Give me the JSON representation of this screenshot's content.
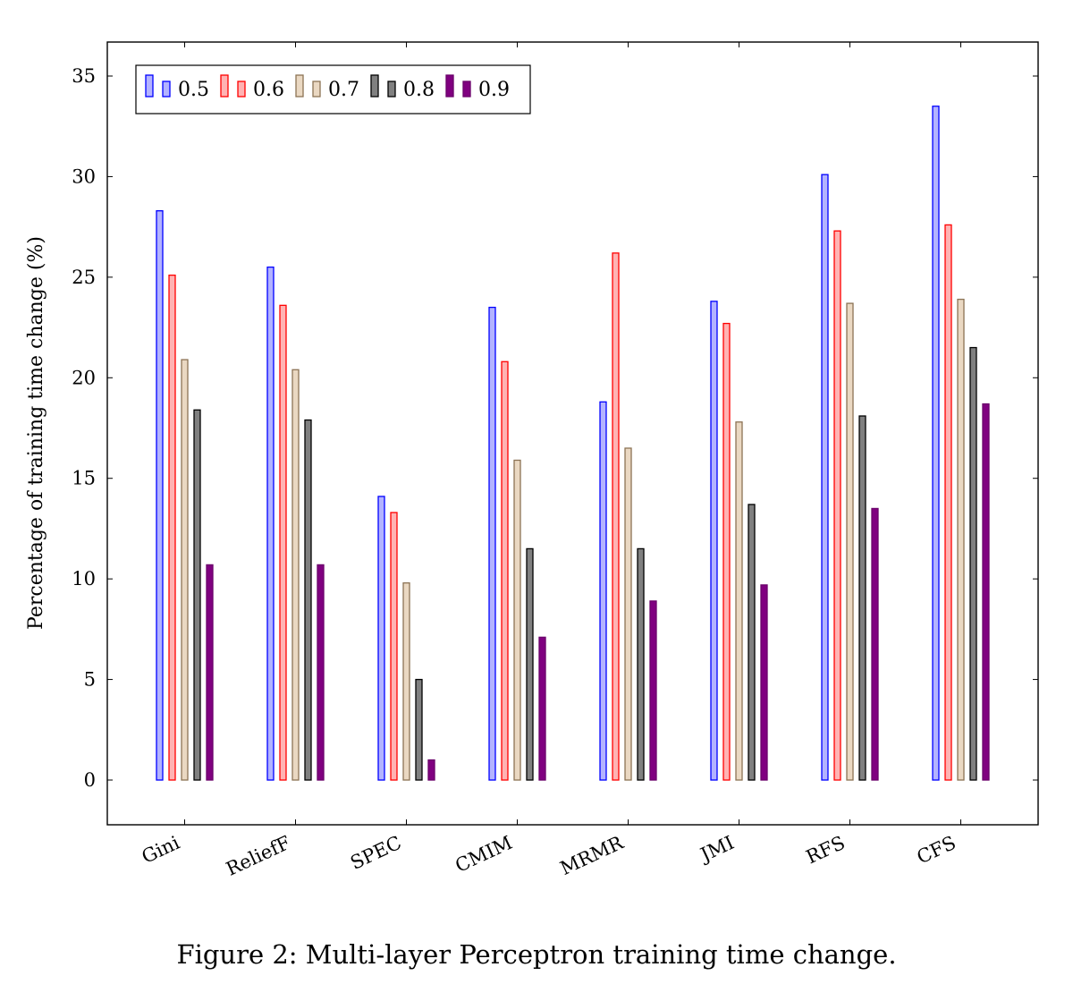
{
  "chart_data": {
    "type": "bar",
    "title": "",
    "xlabel": "",
    "ylabel": "Percentage of training time change (%)",
    "ylim": [
      -2.2,
      36.8
    ],
    "yticks": [
      0,
      5,
      10,
      15,
      20,
      25,
      30,
      35
    ],
    "grid": false,
    "legend_position": "top-left",
    "categories": [
      "Gini",
      "ReliefF",
      "SPEC",
      "CMIM",
      "MRMR",
      "JMI",
      "RFS",
      "CFS"
    ],
    "series": [
      {
        "name": "0.5",
        "stroke": "#0000ff",
        "fill": "#b3b3ff",
        "values": [
          28.3,
          25.5,
          14.1,
          23.5,
          18.8,
          23.8,
          30.1,
          33.5
        ]
      },
      {
        "name": "0.6",
        "stroke": "#ff0000",
        "fill": "#ffb3b3",
        "values": [
          25.1,
          23.6,
          13.3,
          20.8,
          26.2,
          22.7,
          27.3,
          27.6
        ]
      },
      {
        "name": "0.7",
        "stroke": "#8c7355",
        "fill": "#ead8c2",
        "values": [
          20.9,
          20.4,
          9.8,
          15.9,
          16.5,
          17.8,
          23.7,
          23.9
        ]
      },
      {
        "name": "0.8",
        "stroke": "#000000",
        "fill": "#808080",
        "values": [
          18.4,
          17.9,
          5.0,
          11.5,
          11.5,
          13.7,
          18.1,
          21.5
        ]
      },
      {
        "name": "0.9",
        "stroke": "#6a006a",
        "fill": "#800080",
        "values": [
          10.7,
          10.7,
          1.0,
          7.1,
          8.9,
          9.7,
          13.5,
          18.7
        ]
      }
    ]
  },
  "caption": "Figure 2: Multi-layer Perceptron training time change."
}
